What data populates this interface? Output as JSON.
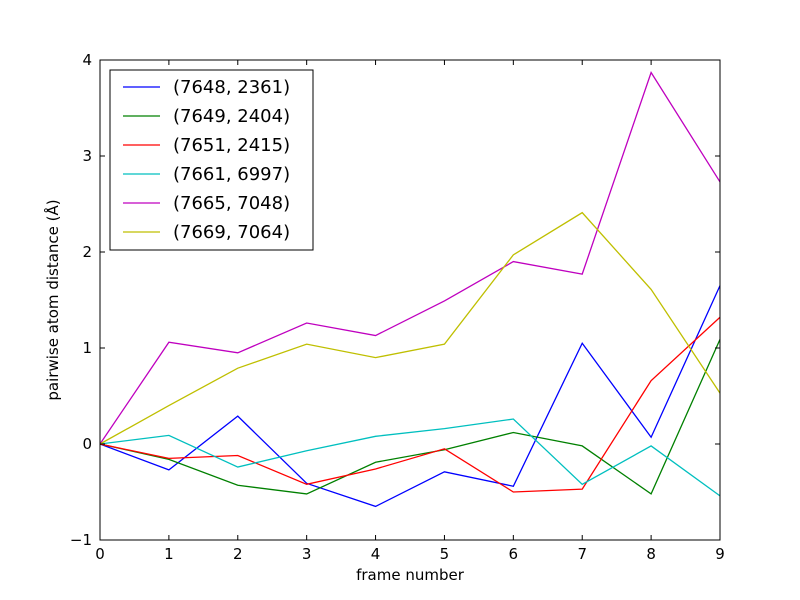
{
  "chart_data": {
    "type": "line",
    "title": "",
    "xlabel": "frame number",
    "ylabel": "pairwise atom distance (Å)",
    "xlim": [
      0,
      9
    ],
    "ylim": [
      -1,
      4
    ],
    "x_ticks": [
      "0",
      "1",
      "2",
      "3",
      "4",
      "5",
      "6",
      "7",
      "8",
      "9"
    ],
    "y_ticks": [
      "−1",
      "0",
      "1",
      "2",
      "3",
      "4"
    ],
    "grid": false,
    "legend_position": "upper-left",
    "x": [
      0,
      1,
      2,
      3,
      4,
      5,
      6,
      7,
      8,
      9
    ],
    "series": [
      {
        "name": "(7648, 2361)",
        "color": "#0000ff",
        "values": [
          0,
          -0.27,
          0.29,
          -0.41,
          -0.65,
          -0.29,
          -0.44,
          1.05,
          0.07,
          1.65
        ]
      },
      {
        "name": "(7649, 2404)",
        "color": "#008000",
        "values": [
          0,
          -0.16,
          -0.43,
          -0.52,
          -0.19,
          -0.06,
          0.12,
          -0.02,
          -0.52,
          1.09
        ]
      },
      {
        "name": "(7651, 2415)",
        "color": "#ff0000",
        "values": [
          0,
          -0.15,
          -0.12,
          -0.42,
          -0.26,
          -0.05,
          -0.5,
          -0.47,
          0.66,
          1.32
        ]
      },
      {
        "name": "(7661, 6997)",
        "color": "#00bfbf",
        "values": [
          0,
          0.09,
          -0.24,
          -0.07,
          0.08,
          0.16,
          0.26,
          -0.42,
          -0.02,
          -0.54
        ]
      },
      {
        "name": "(7665, 7048)",
        "color": "#bf00bf",
        "values": [
          0,
          1.06,
          0.95,
          1.26,
          1.13,
          1.49,
          1.9,
          1.77,
          3.87,
          2.73
        ]
      },
      {
        "name": "(7669, 7064)",
        "color": "#bfbf00",
        "values": [
          0,
          0.4,
          0.79,
          1.04,
          0.9,
          1.04,
          1.97,
          2.41,
          1.61,
          0.53
        ]
      }
    ]
  }
}
